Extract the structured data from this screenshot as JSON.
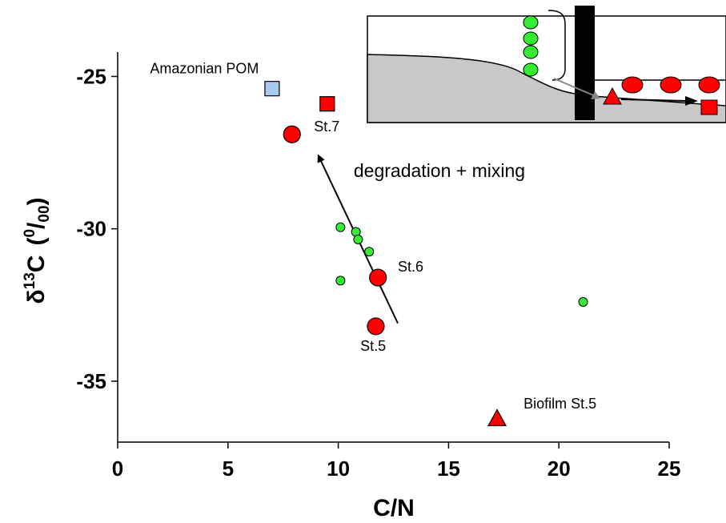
{
  "chart_data": {
    "type": "scatter",
    "xlabel": "C/N",
    "ylabel": {
      "delta": "δ",
      "sup": "13",
      "main": "C",
      "paren_open": "(",
      "unit_sup": "0",
      "unit_slash": "/",
      "unit_sub": "00",
      "paren_close": ")"
    },
    "xlim": [
      0,
      25
    ],
    "ylim": [
      -37,
      -24.2
    ],
    "x_ticks": [
      {
        "v": 0,
        "label": "0"
      },
      {
        "v": 5,
        "label": "5"
      },
      {
        "v": 10,
        "label": "10"
      },
      {
        "v": 15,
        "label": "15"
      },
      {
        "v": 20,
        "label": "20"
      },
      {
        "v": 25,
        "label": "25"
      }
    ],
    "y_ticks": [
      {
        "v": -25,
        "label": "-25"
      },
      {
        "v": -30,
        "label": "-30"
      },
      {
        "v": -35,
        "label": "-35"
      }
    ],
    "grid": false,
    "series": [
      {
        "marker": "square",
        "color": "#a8c8f0",
        "points": [
          [
            7.0,
            -25.4
          ]
        ]
      },
      {
        "marker": "square",
        "color": "#ff0000",
        "points": [
          [
            9.5,
            -25.9
          ]
        ]
      },
      {
        "marker": "circle-large",
        "color": "#ff0000",
        "points": [
          [
            7.9,
            -26.9
          ],
          [
            11.8,
            -31.6
          ],
          [
            11.7,
            -33.2
          ]
        ]
      },
      {
        "marker": "circle-small",
        "color": "#33ee33",
        "points": [
          [
            10.1,
            -29.95
          ],
          [
            10.8,
            -30.1
          ],
          [
            10.9,
            -30.35
          ],
          [
            11.4,
            -30.75
          ],
          [
            10.1,
            -31.7
          ],
          [
            21.1,
            -32.4
          ]
        ]
      },
      {
        "marker": "triangle",
        "color": "#ff0000",
        "points": [
          [
            17.2,
            -36.25
          ]
        ]
      }
    ],
    "annotations": [
      {
        "text": "Amazonian POM",
        "x": 6.4,
        "y": -24.9,
        "anchor": "end"
      },
      {
        "text": "St.7",
        "x": 8.9,
        "y": -26.8,
        "anchor": "start"
      },
      {
        "text": "St.6",
        "x": 12.7,
        "y": -31.4,
        "anchor": "start"
      },
      {
        "text": "St.5",
        "x": 11.0,
        "y": -34.0,
        "anchor": "start"
      },
      {
        "text": "Biofilm St.5",
        "x": 18.4,
        "y": -35.9,
        "anchor": "start"
      },
      {
        "text": "degradation + mixing",
        "x": 10.7,
        "y": -28.3,
        "anchor": "start",
        "big": true
      }
    ],
    "arrow": {
      "from": [
        12.7,
        -33.1
      ],
      "to": [
        9.1,
        -27.6
      ]
    }
  }
}
